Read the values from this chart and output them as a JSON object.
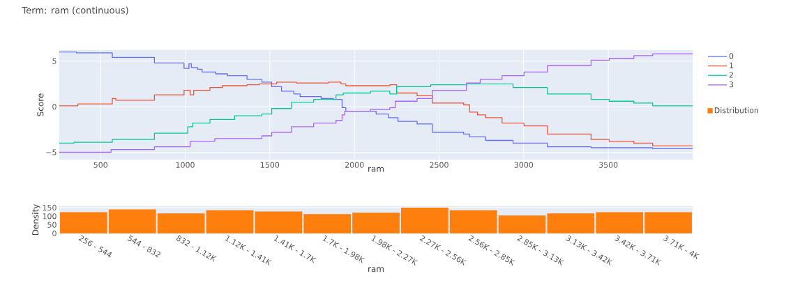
{
  "chart_data": [
    {
      "type": "step",
      "title": "Term: ram (continuous)",
      "xlabel": "ram",
      "ylabel": "Score",
      "xlim": [
        256,
        3998
      ],
      "ylim": [
        -5.8,
        6.2
      ],
      "xticks": [
        500,
        1000,
        1500,
        2000,
        2500,
        3000,
        3500
      ],
      "yticks": [
        {
          "value": -5,
          "label": "−5"
        },
        0,
        5
      ],
      "grid": true,
      "legend": "right",
      "series": [
        {
          "name": "0",
          "color": "#636efa",
          "x": [
            256,
            358,
            569,
            818,
            993,
            1022,
            1036,
            1073,
            1100,
            1180,
            1250,
            1365,
            1453,
            1511,
            1569,
            1642,
            1679,
            1803,
            1876,
            1927,
            1949,
            2128,
            2200,
            2257,
            2370,
            2460,
            2645,
            2680,
            2775,
            2937,
            3140,
            3398,
            3762,
            3998
          ],
          "values": [
            6.0,
            5.9,
            5.4,
            4.8,
            4.2,
            4.7,
            4.3,
            4.1,
            3.8,
            3.6,
            3.4,
            3.0,
            2.7,
            2.2,
            1.7,
            1.4,
            1.1,
            0.9,
            0.8,
            -0.1,
            -0.5,
            -0.8,
            -1.2,
            -1.6,
            -1.9,
            -2.8,
            -3.0,
            -3.3,
            -3.7,
            -4.0,
            -4.4,
            -4.5,
            -4.6,
            -4.6
          ]
        },
        {
          "name": "1",
          "color": "#ef553b",
          "x": [
            256,
            366,
            569,
            590,
            818,
            993,
            1029,
            1050,
            1146,
            1219,
            1365,
            1438,
            1540,
            1657,
            1847,
            1920,
            1949,
            2209,
            2249,
            2370,
            2460,
            2645,
            2680,
            2727,
            2775,
            2872,
            3002,
            3140,
            3398,
            3505,
            3651,
            3762,
            3998
          ],
          "values": [
            0.1,
            0.3,
            0.9,
            0.7,
            1.3,
            1.8,
            1.3,
            1.8,
            2.1,
            2.3,
            2.4,
            2.5,
            2.7,
            2.6,
            2.7,
            2.5,
            2.3,
            2.4,
            1.5,
            1.2,
            0.4,
            0.2,
            -0.6,
            -0.9,
            -1.2,
            -1.8,
            -2.1,
            -3.0,
            -3.6,
            -3.8,
            -4.0,
            -4.3,
            -4.3
          ]
        },
        {
          "name": "2",
          "color": "#00cc96",
          "x": [
            256,
            343,
            569,
            818,
            1015,
            1044,
            1146,
            1292,
            1453,
            1511,
            1628,
            1759,
            1891,
            1934,
            2095,
            2209,
            2249,
            2451,
            2662,
            2937,
            3140,
            3398,
            3505,
            3651,
            3762,
            3998
          ],
          "values": [
            -4.0,
            -3.9,
            -3.6,
            -2.9,
            -2.2,
            -1.8,
            -1.4,
            -1.0,
            -0.8,
            -0.2,
            0.5,
            0.8,
            1.3,
            1.5,
            1.7,
            1.4,
            2.2,
            2.4,
            2.5,
            2.1,
            1.4,
            0.8,
            0.6,
            0.4,
            0.1,
            0.1
          ]
        },
        {
          "name": "3",
          "color": "#ab63fa",
          "x": [
            256,
            562,
            818,
            1029,
            1175,
            1453,
            1511,
            1628,
            1759,
            1891,
            1927,
            1942,
            2095,
            2209,
            2241,
            2370,
            2460,
            2662,
            2743,
            2872,
            3002,
            3140,
            3398,
            3505,
            3651,
            3762,
            3998
          ],
          "values": [
            -5.0,
            -4.7,
            -4.4,
            -3.8,
            -3.5,
            -3.2,
            -2.8,
            -2.2,
            -1.8,
            -1.5,
            -0.9,
            -0.5,
            -0.3,
            -0.1,
            0.6,
            0.9,
            1.8,
            2.6,
            3.0,
            3.4,
            3.8,
            4.5,
            5.1,
            5.3,
            5.6,
            5.8,
            5.8
          ]
        }
      ]
    },
    {
      "type": "bar",
      "xlabel": "ram",
      "ylabel": "Density",
      "ylim": [
        0,
        158
      ],
      "yticks": [
        0,
        50,
        100,
        150
      ],
      "grid": "y",
      "legend": "top right",
      "categories": [
        "256 - 544",
        "544 - 832",
        "832 - 1.12K",
        "1.12K - 1.41K",
        "1.41K - 1.7K",
        "1.7K - 1.98K",
        "1.98K - 2.27K",
        "2.27K - 2.56K",
        "2.56K - 2.85K",
        "2.85K - 3.13K",
        "3.13K - 3.42K",
        "3.42K - 3.71K",
        "3.71K - 4K"
      ],
      "series": [
        {
          "name": "Distribution",
          "color": "#ff7f0e",
          "values": [
            124,
            140,
            116,
            135,
            128,
            112,
            120,
            150,
            135,
            104,
            116,
            124,
            124
          ]
        }
      ]
    }
  ]
}
